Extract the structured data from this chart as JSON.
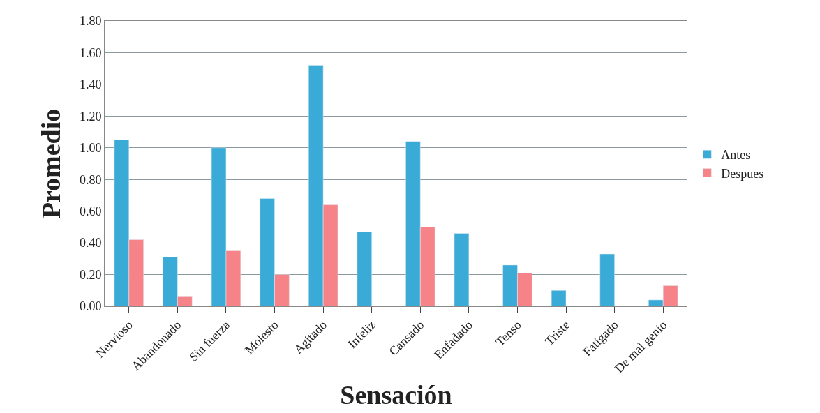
{
  "chart_data": {
    "type": "bar",
    "xlabel": "Sensación",
    "ylabel": "Promedio",
    "categories": [
      "Nervioso",
      "Abandonado",
      "Sin fuerza",
      "Molesto",
      "Agitado",
      "Infeliz",
      "Cansado",
      "Enfadado",
      "Tenso",
      "Triste",
      "Fatigado",
      "De mal genio"
    ],
    "series": [
      {
        "name": "Antes",
        "color": "#3aaad6",
        "values": [
          1.05,
          0.31,
          1.0,
          0.68,
          1.52,
          0.47,
          1.04,
          0.46,
          0.26,
          0.1,
          0.33,
          0.04
        ]
      },
      {
        "name": "Despues",
        "color": "#f58388",
        "values": [
          0.42,
          0.06,
          0.35,
          0.2,
          0.64,
          null,
          0.5,
          null,
          0.21,
          null,
          null,
          0.13
        ]
      }
    ],
    "ylim": [
      0,
      1.8
    ],
    "yticks": [
      {
        "value": 0,
        "label": "0.00"
      },
      {
        "value": 0.2,
        "label": "0.20"
      },
      {
        "value": 0.4,
        "label": "0.40"
      },
      {
        "value": 0.6,
        "label": "0.60"
      },
      {
        "value": 0.8,
        "label": "0.80"
      },
      {
        "value": 1.0,
        "label": "1.00"
      },
      {
        "value": 1.2,
        "label": "1.20"
      },
      {
        "value": 1.4,
        "label": "1.40"
      },
      {
        "value": 1.6,
        "label": "1.60"
      },
      {
        "value": 1.8,
        "label": "1.80"
      }
    ],
    "grid": "y",
    "legend": "right"
  }
}
